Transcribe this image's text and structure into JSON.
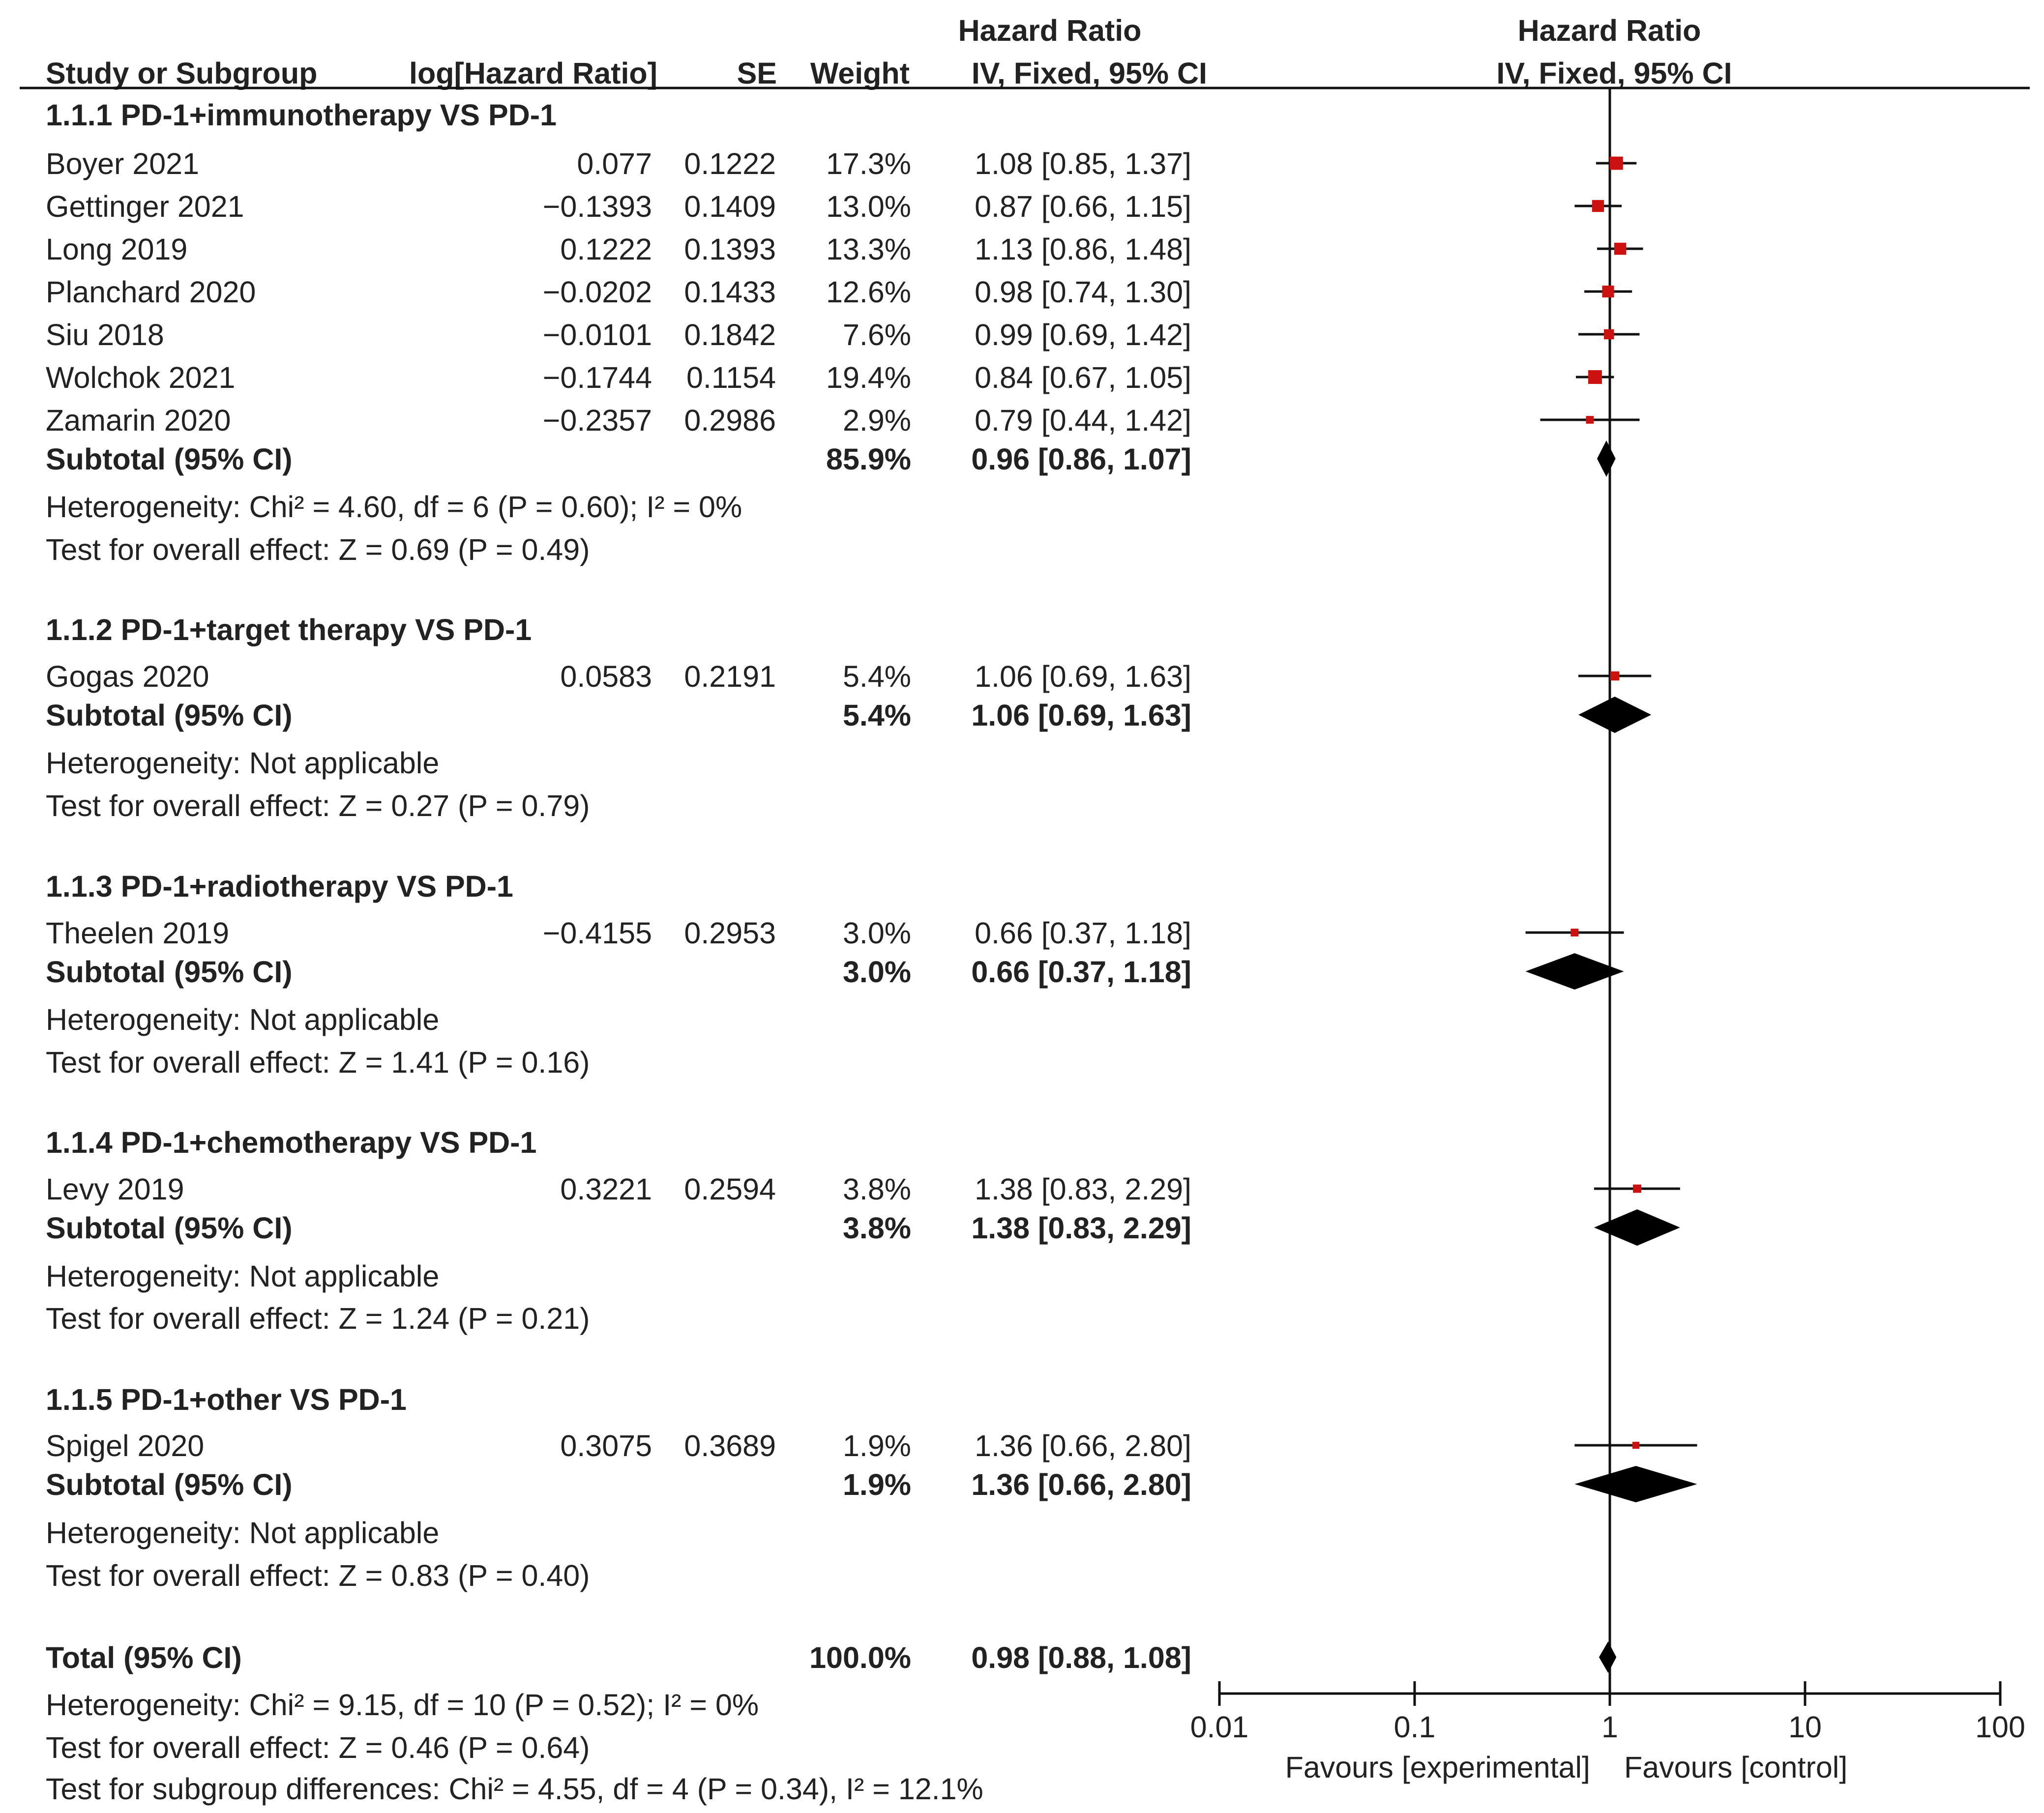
{
  "chart_data": {
    "type": "forest",
    "effect_measure": "Hazard Ratio",
    "method": "IV, Fixed, 95% CI",
    "columns": {
      "study": "Study or Subgroup",
      "log_hr": "log[Hazard Ratio]",
      "se": "SE",
      "weight": "Weight",
      "ci_top": "Hazard Ratio",
      "ci_bottom": "IV, Fixed, 95% CI",
      "plot_top": "Hazard Ratio",
      "plot_bottom": "IV, Fixed, 95% CI"
    },
    "subgroups": [
      {
        "title": "1.1.1 PD-1+immunotherapy VS PD-1",
        "studies": [
          {
            "name": "Boyer 2021",
            "log_hr": "0.077",
            "se": "0.1222",
            "weight": "17.3%",
            "ci_text": "1.08 [0.85, 1.37]",
            "hr": 1.08,
            "lo": 0.85,
            "hi": 1.37,
            "w": 17.3
          },
          {
            "name": "Gettinger 2021",
            "log_hr": "−0.1393",
            "se": "0.1409",
            "weight": "13.0%",
            "ci_text": "0.87 [0.66, 1.15]",
            "hr": 0.87,
            "lo": 0.66,
            "hi": 1.15,
            "w": 13.0
          },
          {
            "name": "Long 2019",
            "log_hr": "0.1222",
            "se": "0.1393",
            "weight": "13.3%",
            "ci_text": "1.13 [0.86, 1.48]",
            "hr": 1.13,
            "lo": 0.86,
            "hi": 1.48,
            "w": 13.3
          },
          {
            "name": "Planchard 2020",
            "log_hr": "−0.0202",
            "se": "0.1433",
            "weight": "12.6%",
            "ci_text": "0.98 [0.74, 1.30]",
            "hr": 0.98,
            "lo": 0.74,
            "hi": 1.3,
            "w": 12.6
          },
          {
            "name": "Siu 2018",
            "log_hr": "−0.0101",
            "se": "0.1842",
            "weight": "7.6%",
            "ci_text": "0.99 [0.69, 1.42]",
            "hr": 0.99,
            "lo": 0.69,
            "hi": 1.42,
            "w": 7.6
          },
          {
            "name": "Wolchok 2021",
            "log_hr": "−0.1744",
            "se": "0.1154",
            "weight": "19.4%",
            "ci_text": "0.84 [0.67, 1.05]",
            "hr": 0.84,
            "lo": 0.67,
            "hi": 1.05,
            "w": 19.4
          },
          {
            "name": "Zamarin 2020",
            "log_hr": "−0.2357",
            "se": "0.2986",
            "weight": "2.9%",
            "ci_text": "0.79 [0.44, 1.42]",
            "hr": 0.79,
            "lo": 0.44,
            "hi": 1.42,
            "w": 2.9
          }
        ],
        "subtotal": {
          "label": "Subtotal (95% CI)",
          "weight": "85.9%",
          "ci_text": "0.96 [0.86, 1.07]",
          "hr": 0.96,
          "lo": 0.86,
          "hi": 1.07
        },
        "heterogeneity": "Heterogeneity: Chi² = 4.60, df = 6 (P = 0.60); I² = 0%",
        "overall": "Test for overall effect: Z = 0.69 (P = 0.49)"
      },
      {
        "title": "1.1.2 PD-1+target therapy VS PD-1",
        "studies": [
          {
            "name": "Gogas 2020",
            "log_hr": "0.0583",
            "se": "0.2191",
            "weight": "5.4%",
            "ci_text": "1.06 [0.69, 1.63]",
            "hr": 1.06,
            "lo": 0.69,
            "hi": 1.63,
            "w": 5.4
          }
        ],
        "subtotal": {
          "label": "Subtotal (95% CI)",
          "weight": "5.4%",
          "ci_text": "1.06 [0.69, 1.63]",
          "hr": 1.06,
          "lo": 0.69,
          "hi": 1.63
        },
        "heterogeneity": "Heterogeneity: Not applicable",
        "overall": "Test for overall effect: Z = 0.27 (P = 0.79)"
      },
      {
        "title": "1.1.3 PD-1+radiotherapy VS PD-1",
        "studies": [
          {
            "name": "Theelen 2019",
            "log_hr": "−0.4155",
            "se": "0.2953",
            "weight": "3.0%",
            "ci_text": "0.66 [0.37, 1.18]",
            "hr": 0.66,
            "lo": 0.37,
            "hi": 1.18,
            "w": 3.0
          }
        ],
        "subtotal": {
          "label": "Subtotal (95% CI)",
          "weight": "3.0%",
          "ci_text": "0.66 [0.37, 1.18]",
          "hr": 0.66,
          "lo": 0.37,
          "hi": 1.18
        },
        "heterogeneity": "Heterogeneity: Not applicable",
        "overall": "Test for overall effect: Z = 1.41 (P = 0.16)"
      },
      {
        "title": "1.1.4 PD-1+chemotherapy VS PD-1",
        "studies": [
          {
            "name": "Levy 2019",
            "log_hr": "0.3221",
            "se": "0.2594",
            "weight": "3.8%",
            "ci_text": "1.38 [0.83, 2.29]",
            "hr": 1.38,
            "lo": 0.83,
            "hi": 2.29,
            "w": 3.8
          }
        ],
        "subtotal": {
          "label": "Subtotal (95% CI)",
          "weight": "3.8%",
          "ci_text": "1.38 [0.83, 2.29]",
          "hr": 1.38,
          "lo": 0.83,
          "hi": 2.29
        },
        "heterogeneity": "Heterogeneity: Not applicable",
        "overall": "Test for overall effect: Z = 1.24 (P = 0.21)"
      },
      {
        "title": "1.1.5 PD-1+other VS PD-1",
        "studies": [
          {
            "name": "Spigel 2020",
            "log_hr": "0.3075",
            "se": "0.3689",
            "weight": "1.9%",
            "ci_text": "1.36 [0.66, 2.80]",
            "hr": 1.36,
            "lo": 0.66,
            "hi": 2.8,
            "w": 1.9
          }
        ],
        "subtotal": {
          "label": "Subtotal (95% CI)",
          "weight": "1.9%",
          "ci_text": "1.36 [0.66, 2.80]",
          "hr": 1.36,
          "lo": 0.66,
          "hi": 2.8
        },
        "heterogeneity": "Heterogeneity: Not applicable",
        "overall": "Test for overall effect: Z = 0.83 (P = 0.40)"
      }
    ],
    "total": {
      "label": "Total (95% CI)",
      "weight": "100.0%",
      "ci_text": "0.98 [0.88, 1.08]",
      "hr": 0.98,
      "lo": 0.88,
      "hi": 1.08
    },
    "footer": [
      "Heterogeneity: Chi² = 9.15, df = 10 (P = 0.52); I² = 0%",
      "Test for overall effect: Z = 0.46 (P = 0.64)",
      "Test for subgroup differences: Chi² = 4.55, df = 4 (P = 0.34), I² = 12.1%"
    ],
    "x_axis": {
      "scale": "log",
      "range": [
        0.01,
        100
      ],
      "ticks": [
        0.01,
        0.1,
        1,
        10,
        100
      ],
      "tick_labels": [
        "0.01",
        "0.1",
        "1",
        "10",
        "100"
      ],
      "reference": 1,
      "left_label": "Favours [experimental]",
      "right_label": "Favours [control]"
    },
    "colors": {
      "square": "#cc1111",
      "diamond": "#000000",
      "line": "#111111",
      "text": "#222222"
    }
  }
}
